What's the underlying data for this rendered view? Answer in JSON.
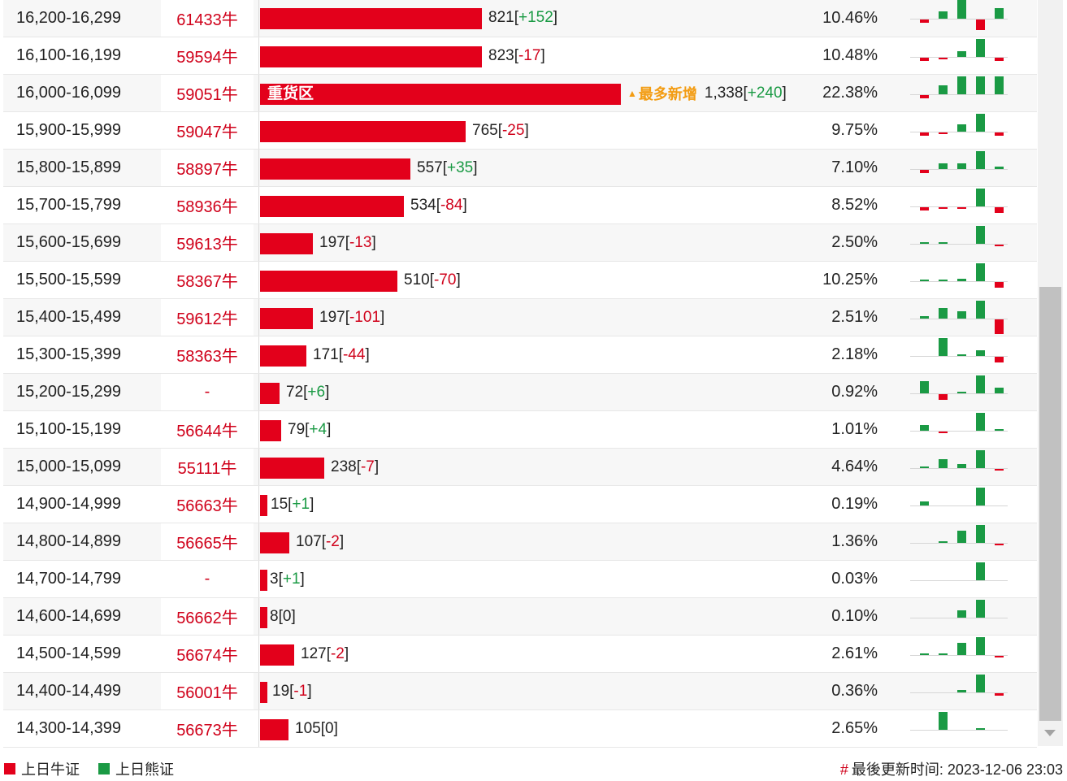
{
  "colors": {
    "bull": "#e3001b",
    "bear": "#1a9a44",
    "accent": "#f39c12"
  },
  "hot_label": "最多新增",
  "rows": [
    {
      "range": "16,200-16,299",
      "code": "61433牛",
      "value": "821",
      "change": "+152",
      "pct": "10.46%",
      "fill_pct": 41.3,
      "heavy": "",
      "hot": false,
      "spark": [
        -1,
        2,
        6,
        -3,
        3
      ]
    },
    {
      "range": "16,100-16,199",
      "code": "59594牛",
      "value": "823",
      "change": "-17",
      "pct": "10.48%",
      "fill_pct": 41.3,
      "heavy": "",
      "hot": false,
      "spark": [
        -1,
        -0.3,
        1.5,
        5,
        -1
      ]
    },
    {
      "range": "16,000-16,099",
      "code": "59051牛",
      "value": "1,338",
      "change": "+240",
      "pct": "22.38%",
      "fill_pct": 67.2,
      "heavy": "重货区",
      "hot": true,
      "spark": [
        -1,
        2.5,
        5,
        5,
        5
      ]
    },
    {
      "range": "15,900-15,999",
      "code": "59047牛",
      "value": "765",
      "change": "-25",
      "pct": "9.75%",
      "fill_pct": 38.4,
      "heavy": "",
      "hot": false,
      "spark": [
        -1,
        -0.4,
        2,
        5,
        -1
      ]
    },
    {
      "range": "15,800-15,899",
      "code": "58897牛",
      "value": "557",
      "change": "+35",
      "pct": "7.10%",
      "fill_pct": 28.0,
      "heavy": "",
      "hot": false,
      "spark": [
        -1,
        1.5,
        1.5,
        5,
        0.7
      ]
    },
    {
      "range": "15,700-15,799",
      "code": "58936牛",
      "value": "534",
      "change": "-84",
      "pct": "8.52%",
      "fill_pct": 26.8,
      "heavy": "",
      "hot": false,
      "spark": [
        -1,
        -0.4,
        -0.4,
        5,
        -1.5
      ]
    },
    {
      "range": "15,600-15,699",
      "code": "59613牛",
      "value": "197",
      "change": "-13",
      "pct": "2.50%",
      "fill_pct": 9.9,
      "heavy": "",
      "hot": false,
      "spark": [
        0.5,
        0.3,
        0,
        5,
        -0.5
      ]
    },
    {
      "range": "15,500-15,599",
      "code": "58367牛",
      "value": "510",
      "change": "-70",
      "pct": "10.25%",
      "fill_pct": 25.6,
      "heavy": "",
      "hot": false,
      "spark": [
        0.3,
        0.4,
        0.7,
        5,
        -1.5
      ]
    },
    {
      "range": "15,400-15,499",
      "code": "59612牛",
      "value": "197",
      "change": "-101",
      "pct": "2.51%",
      "fill_pct": 9.9,
      "heavy": "",
      "hot": false,
      "spark": [
        0.6,
        3,
        2,
        5,
        -4
      ]
    },
    {
      "range": "15,300-15,399",
      "code": "58363牛",
      "value": "171",
      "change": "-44",
      "pct": "2.18%",
      "fill_pct": 8.6,
      "heavy": "",
      "hot": false,
      "spark": [
        0,
        5,
        0.5,
        1.5,
        -1.5
      ]
    },
    {
      "range": "15,200-15,299",
      "code": "-",
      "value": "72",
      "change": "+6",
      "pct": "0.92%",
      "fill_pct": 3.6,
      "heavy": "",
      "hot": false,
      "spark": [
        3.5,
        -1.5,
        0.5,
        5,
        1.5
      ]
    },
    {
      "range": "15,100-15,199",
      "code": "56644牛",
      "value": "79",
      "change": "+4",
      "pct": "1.01%",
      "fill_pct": 4.0,
      "heavy": "",
      "hot": false,
      "spark": [
        1.5,
        -0.5,
        0,
        5,
        0.5
      ]
    },
    {
      "range": "15,000-15,099",
      "code": "55111牛",
      "value": "238",
      "change": "-7",
      "pct": "4.64%",
      "fill_pct": 12.0,
      "heavy": "",
      "hot": false,
      "spark": [
        0.5,
        2.5,
        1.2,
        5,
        -0.5
      ]
    },
    {
      "range": "14,900-14,999",
      "code": "56663牛",
      "value": "15",
      "change": "+1",
      "pct": "0.19%",
      "fill_pct": 0.8,
      "heavy": "",
      "hot": false,
      "spark": [
        1.2,
        0,
        0,
        5,
        0
      ]
    },
    {
      "range": "14,800-14,899",
      "code": "56665牛",
      "value": "107",
      "change": "-2",
      "pct": "1.36%",
      "fill_pct": 5.4,
      "heavy": "",
      "hot": false,
      "spark": [
        0,
        0.3,
        3.5,
        5,
        -0.4
      ]
    },
    {
      "range": "14,700-14,799",
      "code": "-",
      "value": "3",
      "change": "+1",
      "pct": "0.03%",
      "fill_pct": 0.2,
      "heavy": "",
      "hot": false,
      "spark": [
        0,
        0,
        0,
        5,
        0
      ]
    },
    {
      "range": "14,600-14,699",
      "code": "56662牛",
      "value": "8",
      "change": "0",
      "pct": "0.10%",
      "fill_pct": 0.4,
      "heavy": "",
      "hot": false,
      "spark": [
        0,
        0,
        2,
        5,
        0
      ]
    },
    {
      "range": "14,500-14,599",
      "code": "56674牛",
      "value": "127",
      "change": "-2",
      "pct": "2.61%",
      "fill_pct": 6.4,
      "heavy": "",
      "hot": false,
      "spark": [
        0.3,
        0.3,
        3.5,
        5,
        -0.3
      ]
    },
    {
      "range": "14,400-14,499",
      "code": "56001牛",
      "value": "19",
      "change": "-1",
      "pct": "0.36%",
      "fill_pct": 1.0,
      "heavy": "",
      "hot": false,
      "spark": [
        0,
        0,
        0.6,
        5,
        -0.6
      ]
    },
    {
      "range": "14,300-14,399",
      "code": "56673牛",
      "value": "105",
      "change": "0",
      "pct": "2.65%",
      "fill_pct": 5.3,
      "heavy": "",
      "hot": false,
      "spark": [
        0,
        5,
        0,
        0.3,
        0
      ]
    }
  ],
  "legend": {
    "bull_label": "上日牛证",
    "bear_label": "上日熊证"
  },
  "footer": {
    "updated_prefix": "#",
    "updated_label": "最後更新时间:",
    "updated_time": "2023-12-06 23:03"
  }
}
